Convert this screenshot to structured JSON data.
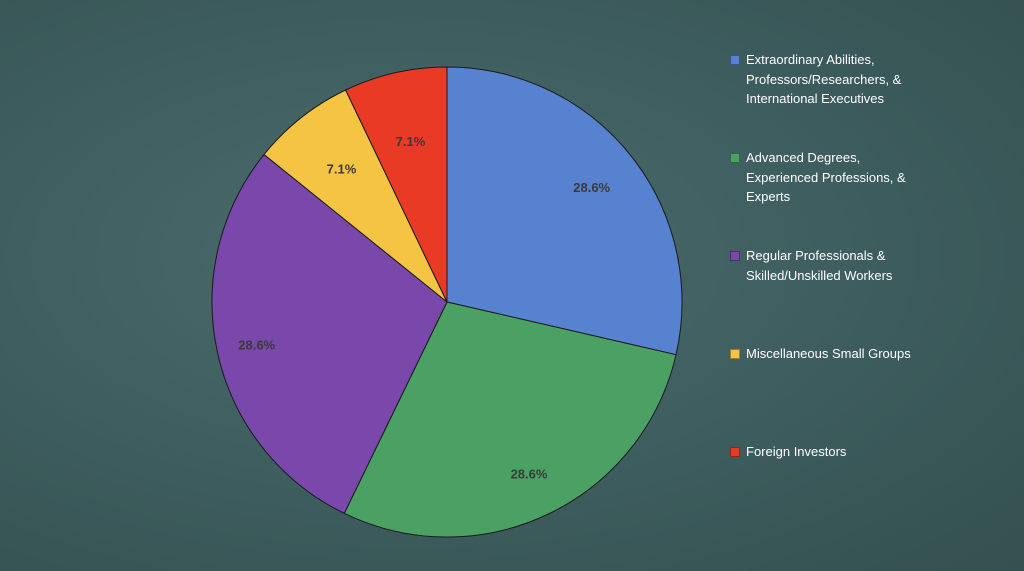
{
  "chart_data": {
    "type": "pie",
    "slices": [
      {
        "name": "Extraordinary Abilities, Professors/Researchers, & International Executives",
        "value": 28.6,
        "label": "28.6%",
        "color": "#5682d0"
      },
      {
        "name": "Advanced Degrees, Experienced Professions, & Experts",
        "value": 28.6,
        "label": "28.6%",
        "color": "#4aa163"
      },
      {
        "name": "Regular Professionals & Skilled/Unskilled Workers",
        "value": 28.6,
        "label": "28.6%",
        "color": "#7a48ab"
      },
      {
        "name": "Miscellaneous Small Groups",
        "value": 7.1,
        "label": "7.1%",
        "color": "#f4c442"
      },
      {
        "name": "Foreign Investors",
        "value": 7.1,
        "label": "7.1%",
        "color": "#e83a24"
      }
    ],
    "start_angle": "12 o'clock",
    "direction": "clockwise",
    "legend_position": "right"
  }
}
